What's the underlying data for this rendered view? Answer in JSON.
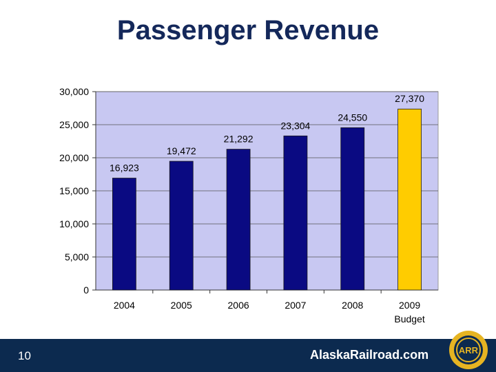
{
  "slide": {
    "title": "Passenger Revenue",
    "number": "10",
    "website": "AlaskaRailroad.com"
  },
  "colors": {
    "title": "#14285a",
    "plot_bg": "#c8c8f2",
    "bar": "#0a0a82",
    "bar_highlight": "#ffcc00",
    "footer": "#0c2a4f",
    "logo_gold": "#e6b422"
  },
  "logo": {
    "name": "alaska-railroad-logo",
    "letters": "ARR"
  },
  "chart_data": {
    "type": "bar",
    "title": "Passenger Revenue",
    "categories": [
      [
        "2004"
      ],
      [
        "2005"
      ],
      [
        "2006"
      ],
      [
        "2007"
      ],
      [
        "2008"
      ],
      [
        "2009",
        "Budget"
      ]
    ],
    "values": [
      16923,
      19472,
      21292,
      23304,
      24550,
      27370
    ],
    "value_labels": [
      "16,923",
      "19,472",
      "21,292",
      "23,304",
      "24,550",
      "27,370"
    ],
    "highlight_index": 5,
    "ylim": [
      0,
      30000
    ],
    "yticks": [
      0,
      5000,
      10000,
      15000,
      20000,
      25000,
      30000
    ],
    "ytick_labels": [
      "0",
      "5,000",
      "10,000",
      "15,000",
      "20,000",
      "25,000",
      "30,000"
    ],
    "grid": true,
    "xlabel": "",
    "ylabel": ""
  }
}
